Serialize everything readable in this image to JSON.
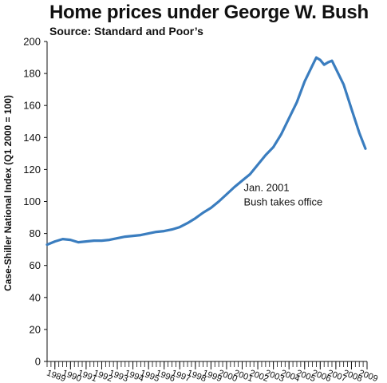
{
  "chart_data": {
    "type": "line",
    "title": "Home prices under George W. Bush",
    "subtitle": "Source: Standard and Poor’s",
    "xlabel": "",
    "ylabel": "Case-Shiller National Index (Q1 2000 = 100)",
    "ylim": [
      0,
      200
    ],
    "yticks": [
      0,
      20,
      40,
      60,
      80,
      100,
      120,
      140,
      160,
      180,
      200
    ],
    "xlim": [
      1988.5,
      2009
    ],
    "xticks": [
      1989,
      1990,
      1991,
      1992,
      1993,
      1994,
      1995,
      1996,
      1997,
      1998,
      1999,
      2000,
      2001,
      2002,
      2003,
      2004,
      2005,
      2006,
      2007,
      2008,
      2009
    ],
    "grid": false,
    "legend": "none",
    "line_color": "#3a7dbf",
    "series": [
      {
        "x": [
          1988.5,
          1989.0,
          1989.5,
          1990.0,
          1990.5,
          1991.0,
          1991.5,
          1992.0,
          1992.5,
          1993.0,
          1993.5,
          1994.0,
          1994.5,
          1995.0,
          1995.5,
          1996.0,
          1996.5,
          1997.0,
          1997.5,
          1998.0,
          1998.5,
          1999.0,
          1999.5,
          2000.0,
          2000.5,
          2001.0,
          2001.5,
          2002.0,
          2002.5,
          2003.0,
          2003.5,
          2004.0,
          2004.5,
          2005.0,
          2005.5,
          2005.75,
          2006.0,
          2006.25,
          2006.5,
          2006.75,
          2007.0,
          2007.5,
          2008.0,
          2008.5,
          2008.9
        ],
        "y": [
          73,
          75,
          76.5,
          76,
          74.5,
          75,
          75.5,
          75.5,
          76,
          77,
          78,
          78.5,
          79,
          80,
          81,
          81.5,
          82.5,
          84,
          86.5,
          89.5,
          93,
          96,
          100,
          104.5,
          109,
          113,
          117,
          123,
          129,
          134,
          142,
          152,
          162,
          175,
          185,
          190,
          188.5,
          185.5,
          187,
          188,
          183,
          173,
          158,
          143,
          133
        ]
      }
    ],
    "annotations": [
      {
        "lines": [
          "Jan. 2001",
          "Bush takes office"
        ],
        "x": 2001,
        "y": 105
      }
    ]
  }
}
